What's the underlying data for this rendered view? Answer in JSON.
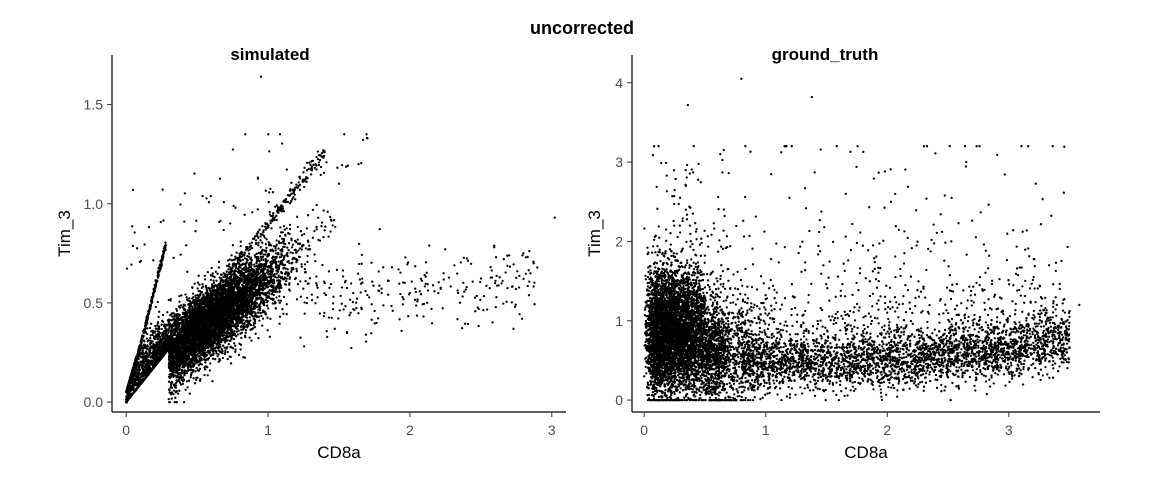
{
  "figure": {
    "title": "uncorrected"
  },
  "chart_data": [
    {
      "type": "scatter",
      "title": "simulated",
      "xlabel": "CD8a",
      "ylabel": "Tim_3",
      "xlim": [
        -0.1,
        3.1
      ],
      "ylim": [
        -0.05,
        1.75
      ],
      "xticks": [
        0,
        1,
        2,
        3
      ],
      "yticks": [
        0.0,
        0.5,
        1.0,
        1.5
      ],
      "ytick_labels": [
        "0.0",
        "0.5",
        "1.0",
        "1.5"
      ],
      "grid": false,
      "point_color": "#000000",
      "series": [
        {
          "points_approx": 9000,
          "x": [
            0,
            0.05,
            0.1,
            0.2,
            0.3,
            0.4,
            0.5,
            0.6,
            0.7,
            0.8,
            0.9,
            1.0,
            1.1,
            1.2,
            1.4,
            1.6,
            1.8,
            2.0,
            2.2,
            2.4,
            2.6,
            2.8,
            3.02,
            0.95,
            1.7
          ],
          "y": [
            0.0,
            0.1,
            0.2,
            0.35,
            0.4,
            0.45,
            0.5,
            0.55,
            0.6,
            0.62,
            0.65,
            0.68,
            0.7,
            0.72,
            0.6,
            0.55,
            0.55,
            0.55,
            0.55,
            0.58,
            0.6,
            0.75,
            0.93,
            1.64,
            1.33
          ]
        }
      ]
    },
    {
      "type": "scatter",
      "title": "ground_truth",
      "xlabel": "CD8a",
      "ylabel": "Tim_3",
      "xlim": [
        -0.1,
        3.75
      ],
      "ylim": [
        -0.15,
        4.35
      ],
      "xticks": [
        0,
        1,
        2,
        3
      ],
      "yticks": [
        0,
        1,
        2,
        3,
        4
      ],
      "ytick_labels": [
        "0",
        "1",
        "2",
        "3",
        "4"
      ],
      "grid": false,
      "point_color": "#000000",
      "series": [
        {
          "points_approx": 9000,
          "x": [
            0,
            0.1,
            0.2,
            0.3,
            0.4,
            0.5,
            0.7,
            1.0,
            1.3,
            1.6,
            2.0,
            2.3,
            2.6,
            3.0,
            3.3,
            3.58,
            0.8,
            1.38,
            0.36,
            2.65
          ],
          "y": [
            0.3,
            0.6,
            0.9,
            0.8,
            0.7,
            0.65,
            0.6,
            0.55,
            0.5,
            0.5,
            0.5,
            0.55,
            0.6,
            0.65,
            0.8,
            1.2,
            4.05,
            3.82,
            3.72,
            3.0
          ]
        }
      ]
    }
  ]
}
